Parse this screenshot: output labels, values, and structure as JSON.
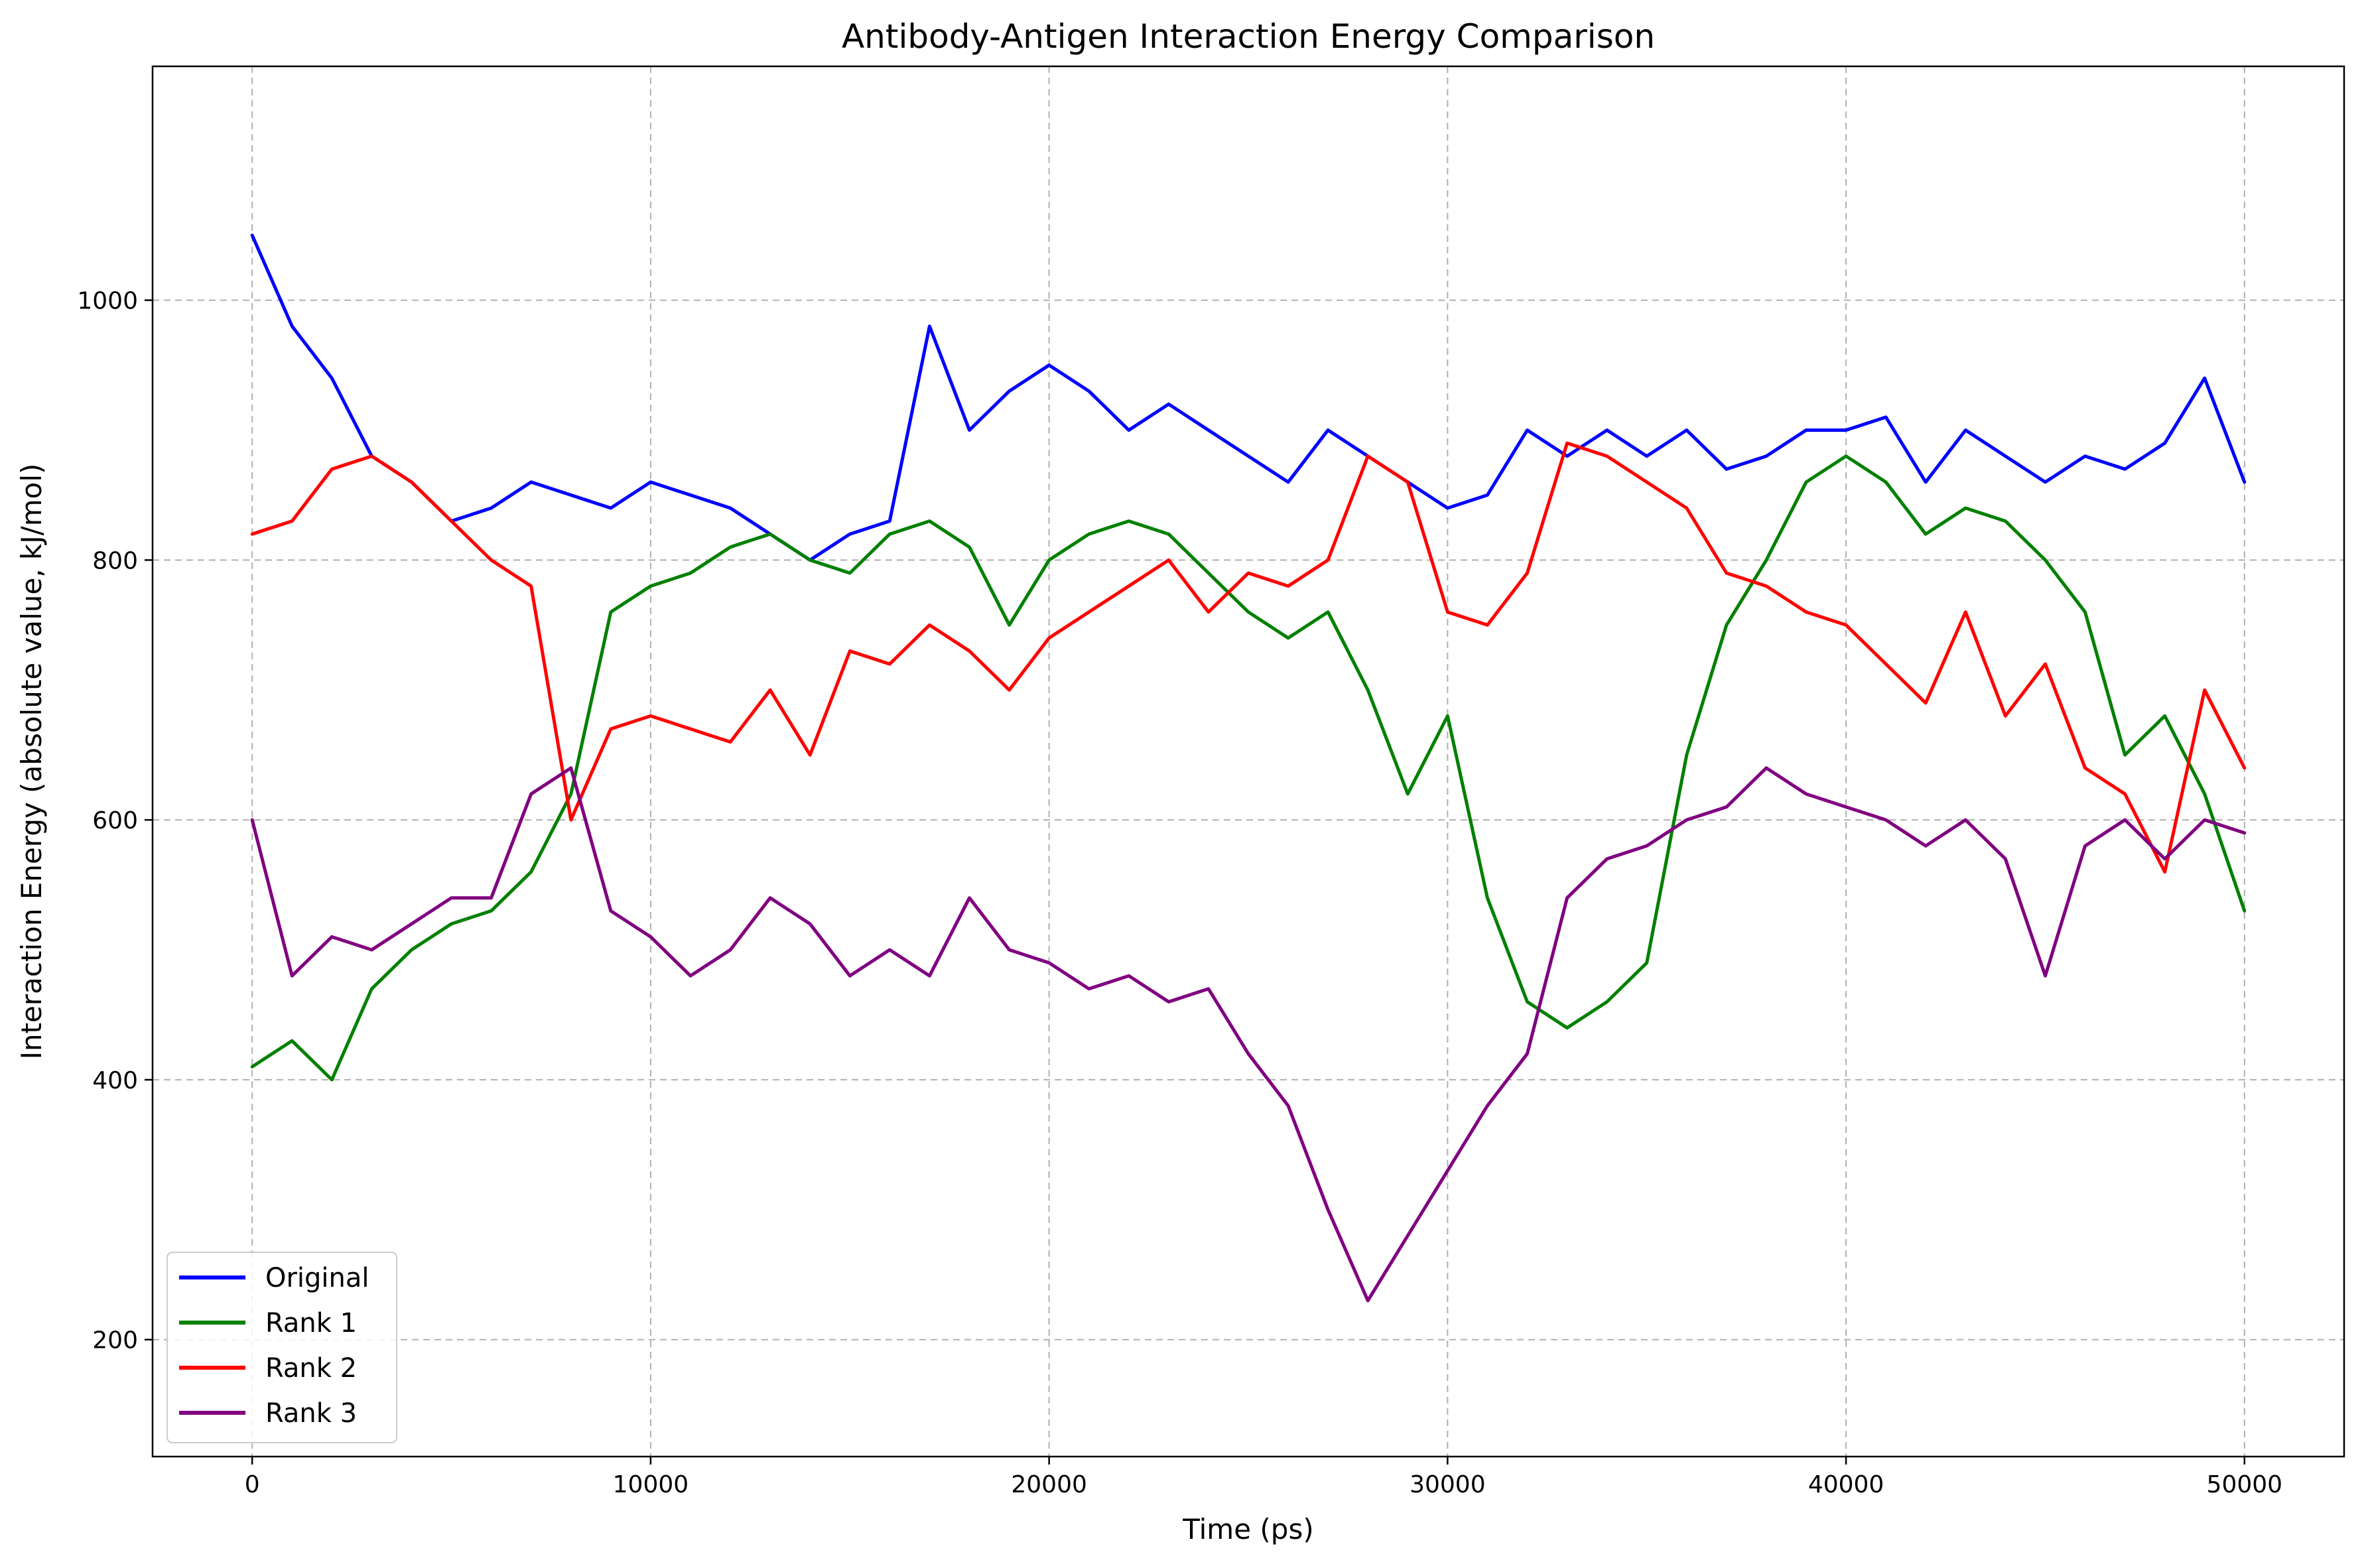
{
  "chart_data": {
    "type": "line",
    "title": "Antibody-Antigen Interaction Energy Comparison",
    "xlabel": "Time (ps)",
    "ylabel": "Interaction Energy (absolute value, kJ/mol)",
    "xlim": [
      -2500,
      52500
    ],
    "ylim": [
      110,
      1180
    ],
    "x_ticks": [
      0,
      10000,
      20000,
      30000,
      40000,
      50000
    ],
    "y_ticks": [
      200,
      400,
      600,
      800,
      1000
    ],
    "grid": true,
    "legend_position": "lower-left",
    "x": [
      0,
      1000,
      2000,
      3000,
      4000,
      5000,
      6000,
      7000,
      8000,
      9000,
      10000,
      11000,
      12000,
      13000,
      14000,
      15000,
      16000,
      17000,
      18000,
      19000,
      20000,
      21000,
      22000,
      23000,
      24000,
      25000,
      26000,
      27000,
      28000,
      29000,
      30000,
      31000,
      32000,
      33000,
      34000,
      35000,
      36000,
      37000,
      38000,
      39000,
      40000,
      41000,
      42000,
      43000,
      44000,
      45000,
      46000,
      47000,
      48000,
      49000,
      50000
    ],
    "series": [
      {
        "name": "Original",
        "color": "#0000ff",
        "values": [
          1050,
          980,
          940,
          880,
          860,
          830,
          840,
          860,
          850,
          840,
          860,
          850,
          840,
          820,
          800,
          820,
          830,
          980,
          900,
          930,
          950,
          930,
          900,
          920,
          900,
          880,
          860,
          900,
          880,
          860,
          840,
          850,
          900,
          880,
          900,
          880,
          900,
          870,
          880,
          900,
          900,
          910,
          860,
          900,
          880,
          860,
          880,
          870,
          890,
          940,
          860
        ]
      },
      {
        "name": "Rank 1",
        "color": "#008000",
        "values": [
          410,
          430,
          400,
          470,
          500,
          520,
          530,
          560,
          620,
          760,
          780,
          790,
          810,
          820,
          800,
          790,
          820,
          830,
          810,
          750,
          800,
          820,
          830,
          820,
          790,
          760,
          740,
          760,
          700,
          620,
          680,
          540,
          460,
          440,
          460,
          490,
          650,
          750,
          800,
          860,
          880,
          860,
          820,
          840,
          830,
          800,
          760,
          650,
          680,
          620,
          530
        ]
      },
      {
        "name": "Rank 2",
        "color": "#ff0000",
        "values": [
          820,
          830,
          870,
          880,
          860,
          830,
          800,
          780,
          600,
          670,
          680,
          670,
          660,
          700,
          650,
          730,
          720,
          750,
          730,
          700,
          740,
          760,
          780,
          800,
          760,
          790,
          780,
          800,
          880,
          860,
          760,
          750,
          790,
          890,
          880,
          860,
          840,
          790,
          780,
          760,
          750,
          720,
          690,
          760,
          680,
          720,
          640,
          620,
          560,
          700,
          640
        ]
      },
      {
        "name": "Rank 3",
        "color": "#800080",
        "values": [
          600,
          480,
          510,
          500,
          520,
          540,
          540,
          620,
          640,
          530,
          510,
          480,
          500,
          540,
          520,
          480,
          500,
          480,
          540,
          500,
          490,
          470,
          480,
          460,
          470,
          420,
          380,
          300,
          230,
          280,
          330,
          380,
          420,
          540,
          570,
          580,
          600,
          610,
          640,
          620,
          610,
          600,
          580,
          600,
          570,
          480,
          580,
          600,
          570,
          600,
          590
        ]
      }
    ]
  }
}
